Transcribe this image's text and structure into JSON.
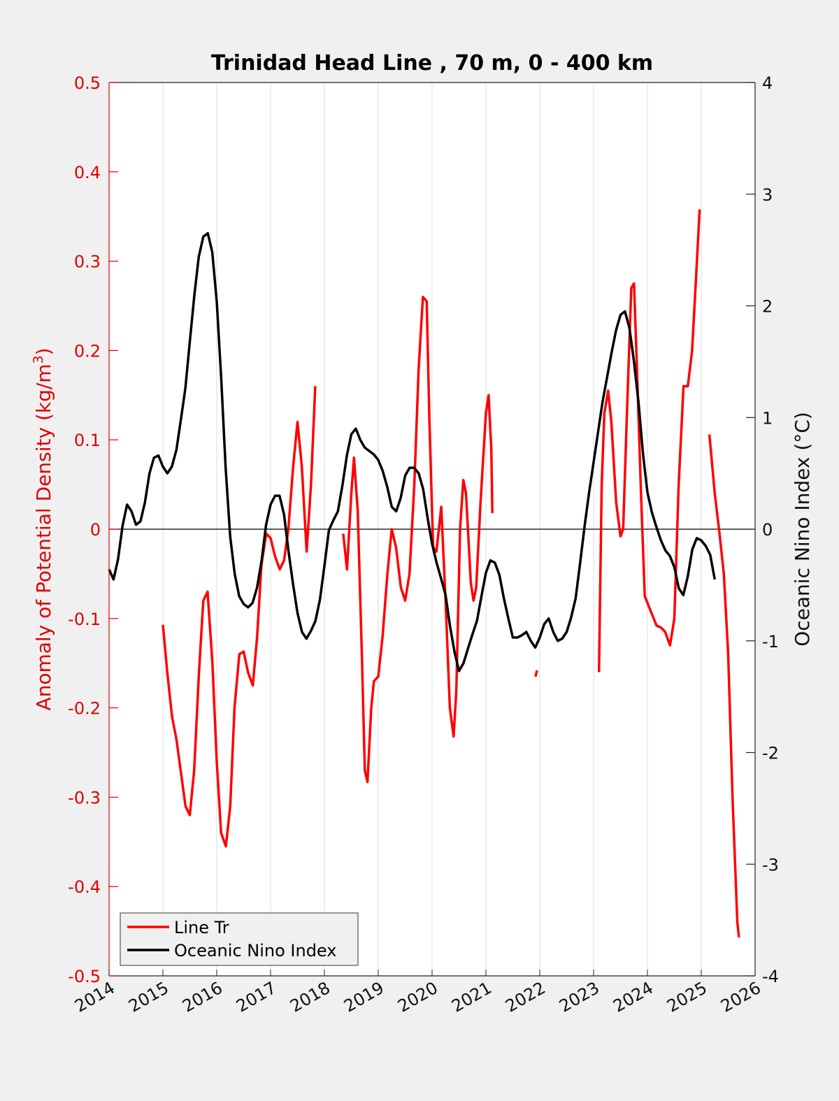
{
  "chart_data": {
    "type": "line",
    "title": "Trinidad Head Line , 70 m, 0 - 400 km",
    "xlabel": "",
    "ylabel_left": "Anomaly of Potential Density (kg/m3)",
    "ylabel_left_base": "Anomaly of Potential Density (kg/m",
    "ylabel_left_sup": "3",
    "ylabel_left_close": ")",
    "ylabel_right": "Oceanic Nino Index (°C)",
    "xlim": [
      2014,
      2026
    ],
    "ylim_left": [
      -0.5,
      0.5
    ],
    "ylim_right": [
      -4,
      4
    ],
    "x_ticks": [
      "2014",
      "2015",
      "2016",
      "2017",
      "2018",
      "2019",
      "2020",
      "2021",
      "2022",
      "2023",
      "2024",
      "2025",
      "2026"
    ],
    "y_ticks_left": [
      "0.5",
      "0.4",
      "0.3",
      "0.2",
      "0.1",
      "0",
      "-0.1",
      "-0.2",
      "-0.3",
      "-0.4",
      "-0.5"
    ],
    "y_ticks_right": [
      "4",
      "3",
      "2",
      "1",
      "0",
      "-1",
      "-2",
      "-3",
      "-4"
    ],
    "grid": "vertical-x",
    "zero_line": true,
    "legend_position": "bottom-left",
    "colors": {
      "line_tr": "#ff0000",
      "oni": "#000000",
      "left_axis": "#e00000"
    },
    "series": [
      {
        "name": "Line Tr",
        "axis": "left",
        "segments": [
          [
            [
              2015.0,
              -0.107
            ],
            [
              2015.08,
              -0.16
            ],
            [
              2015.17,
              -0.21
            ],
            [
              2015.25,
              -0.235
            ],
            [
              2015.33,
              -0.27
            ],
            [
              2015.42,
              -0.31
            ],
            [
              2015.5,
              -0.32
            ],
            [
              2015.58,
              -0.27
            ],
            [
              2015.67,
              -0.16
            ],
            [
              2015.75,
              -0.08
            ],
            [
              2015.83,
              -0.07
            ],
            [
              2015.92,
              -0.15
            ],
            [
              2016.0,
              -0.26
            ],
            [
              2016.08,
              -0.34
            ],
            [
              2016.17,
              -0.355
            ],
            [
              2016.25,
              -0.31
            ],
            [
              2016.33,
              -0.2
            ],
            [
              2016.42,
              -0.14
            ],
            [
              2016.5,
              -0.137
            ],
            [
              2016.58,
              -0.16
            ],
            [
              2016.67,
              -0.175
            ],
            [
              2016.75,
              -0.12
            ],
            [
              2016.83,
              -0.04
            ],
            [
              2016.92,
              -0.005
            ],
            [
              2017.0,
              -0.01
            ],
            [
              2017.08,
              -0.03
            ],
            [
              2017.17,
              -0.045
            ],
            [
              2017.25,
              -0.035
            ],
            [
              2017.33,
              0.0
            ],
            [
              2017.42,
              0.07
            ],
            [
              2017.5,
              0.12
            ],
            [
              2017.58,
              0.07
            ],
            [
              2017.67,
              -0.025
            ],
            [
              2017.75,
              0.05
            ],
            [
              2017.83,
              0.16
            ]
          ],
          [
            [
              2018.35,
              -0.005
            ],
            [
              2018.42,
              -0.045
            ],
            [
              2018.5,
              0.04
            ],
            [
              2018.55,
              0.08
            ],
            [
              2018.62,
              0.02
            ],
            [
              2018.7,
              -0.15
            ],
            [
              2018.75,
              -0.27
            ],
            [
              2018.8,
              -0.283
            ],
            [
              2018.87,
              -0.2
            ],
            [
              2018.92,
              -0.17
            ],
            [
              2019.0,
              -0.165
            ],
            [
              2019.08,
              -0.12
            ],
            [
              2019.17,
              -0.05
            ],
            [
              2019.25,
              0.0
            ],
            [
              2019.33,
              -0.02
            ],
            [
              2019.42,
              -0.065
            ],
            [
              2019.5,
              -0.08
            ],
            [
              2019.58,
              -0.05
            ],
            [
              2019.67,
              0.05
            ],
            [
              2019.75,
              0.18
            ],
            [
              2019.83,
              0.26
            ],
            [
              2019.9,
              0.255
            ],
            [
              2019.95,
              0.12
            ],
            [
              2020.02,
              -0.02
            ],
            [
              2020.08,
              -0.025
            ],
            [
              2020.17,
              0.025
            ],
            [
              2020.25,
              -0.08
            ],
            [
              2020.33,
              -0.2
            ],
            [
              2020.4,
              -0.232
            ],
            [
              2020.45,
              -0.18
            ],
            [
              2020.52,
              0.0
            ],
            [
              2020.58,
              0.055
            ],
            [
              2020.63,
              0.04
            ],
            [
              2020.72,
              -0.06
            ],
            [
              2020.77,
              -0.08
            ],
            [
              2020.82,
              -0.065
            ],
            [
              2020.9,
              0.03
            ],
            [
              2021.0,
              0.13
            ],
            [
              2021.05,
              0.15
            ],
            [
              2021.1,
              0.09
            ],
            [
              2021.12,
              0.018
            ]
          ],
          [
            [
              2021.92,
              -0.165
            ],
            [
              2021.95,
              -0.158
            ]
          ],
          [
            [
              2023.1,
              -0.16
            ],
            [
              2023.15,
              0.05
            ],
            [
              2023.2,
              0.13
            ],
            [
              2023.27,
              0.155
            ],
            [
              2023.33,
              0.12
            ],
            [
              2023.42,
              0.03
            ],
            [
              2023.5,
              -0.008
            ],
            [
              2023.55,
              0.0
            ],
            [
              2023.62,
              0.13
            ],
            [
              2023.7,
              0.27
            ],
            [
              2023.75,
              0.275
            ],
            [
              2023.8,
              0.19
            ],
            [
              2023.88,
              0.04
            ],
            [
              2023.95,
              -0.075
            ],
            [
              2024.05,
              -0.09
            ],
            [
              2024.17,
              -0.108
            ],
            [
              2024.25,
              -0.11
            ],
            [
              2024.33,
              -0.115
            ],
            [
              2024.42,
              -0.13
            ],
            [
              2024.5,
              -0.1
            ],
            [
              2024.58,
              0.05
            ],
            [
              2024.67,
              0.16
            ],
            [
              2024.75,
              0.16
            ],
            [
              2024.83,
              0.2
            ],
            [
              2024.92,
              0.3
            ],
            [
              2024.97,
              0.358
            ]
          ],
          [
            [
              2025.15,
              0.106
            ],
            [
              2025.25,
              0.04
            ],
            [
              2025.33,
              0.0
            ],
            [
              2025.42,
              -0.05
            ],
            [
              2025.5,
              -0.14
            ],
            [
              2025.58,
              -0.3
            ],
            [
              2025.67,
              -0.44
            ],
            [
              2025.7,
              -0.457
            ]
          ]
        ]
      },
      {
        "name": "Oceanic Nino Index",
        "axis": "right",
        "x_start": 2014.0,
        "x_step_months": 1,
        "values": [
          -0.36,
          -0.45,
          -0.27,
          0.03,
          0.22,
          0.16,
          0.04,
          0.07,
          0.24,
          0.5,
          0.64,
          0.66,
          0.56,
          0.5,
          0.56,
          0.71,
          0.98,
          1.26,
          1.68,
          2.09,
          2.44,
          2.62,
          2.65,
          2.48,
          2.04,
          1.35,
          0.54,
          -0.07,
          -0.4,
          -0.6,
          -0.67,
          -0.7,
          -0.66,
          -0.52,
          -0.28,
          0.04,
          0.22,
          0.3,
          0.3,
          0.13,
          -0.2,
          -0.49,
          -0.75,
          -0.92,
          -0.98,
          -0.91,
          -0.82,
          -0.63,
          -0.33,
          -0.01,
          0.08,
          0.16,
          0.39,
          0.66,
          0.85,
          0.9,
          0.8,
          0.73,
          0.7,
          0.67,
          0.62,
          0.52,
          0.38,
          0.2,
          0.16,
          0.28,
          0.48,
          0.55,
          0.55,
          0.5,
          0.36,
          0.1,
          -0.13,
          -0.3,
          -0.44,
          -0.59,
          -0.87,
          -1.1,
          -1.27,
          -1.2,
          -1.07,
          -0.94,
          -0.82,
          -0.6,
          -0.39,
          -0.28,
          -0.3,
          -0.41,
          -0.62,
          -0.8,
          -0.97,
          -0.97,
          -0.95,
          -0.92,
          -1.0,
          -1.06,
          -0.97,
          -0.85,
          -0.8,
          -0.92,
          -1.0,
          -0.98,
          -0.92,
          -0.79,
          -0.62,
          -0.3,
          0.03,
          0.33,
          0.6,
          0.87,
          1.14,
          1.36,
          1.58,
          1.78,
          1.92,
          1.95,
          1.8,
          1.5,
          1.14,
          0.68,
          0.33,
          0.15,
          0.02,
          -0.1,
          -0.19,
          -0.24,
          -0.34,
          -0.53,
          -0.59,
          -0.42,
          -0.18,
          -0.08,
          -0.1,
          -0.15,
          -0.23,
          -0.45
        ]
      }
    ]
  }
}
